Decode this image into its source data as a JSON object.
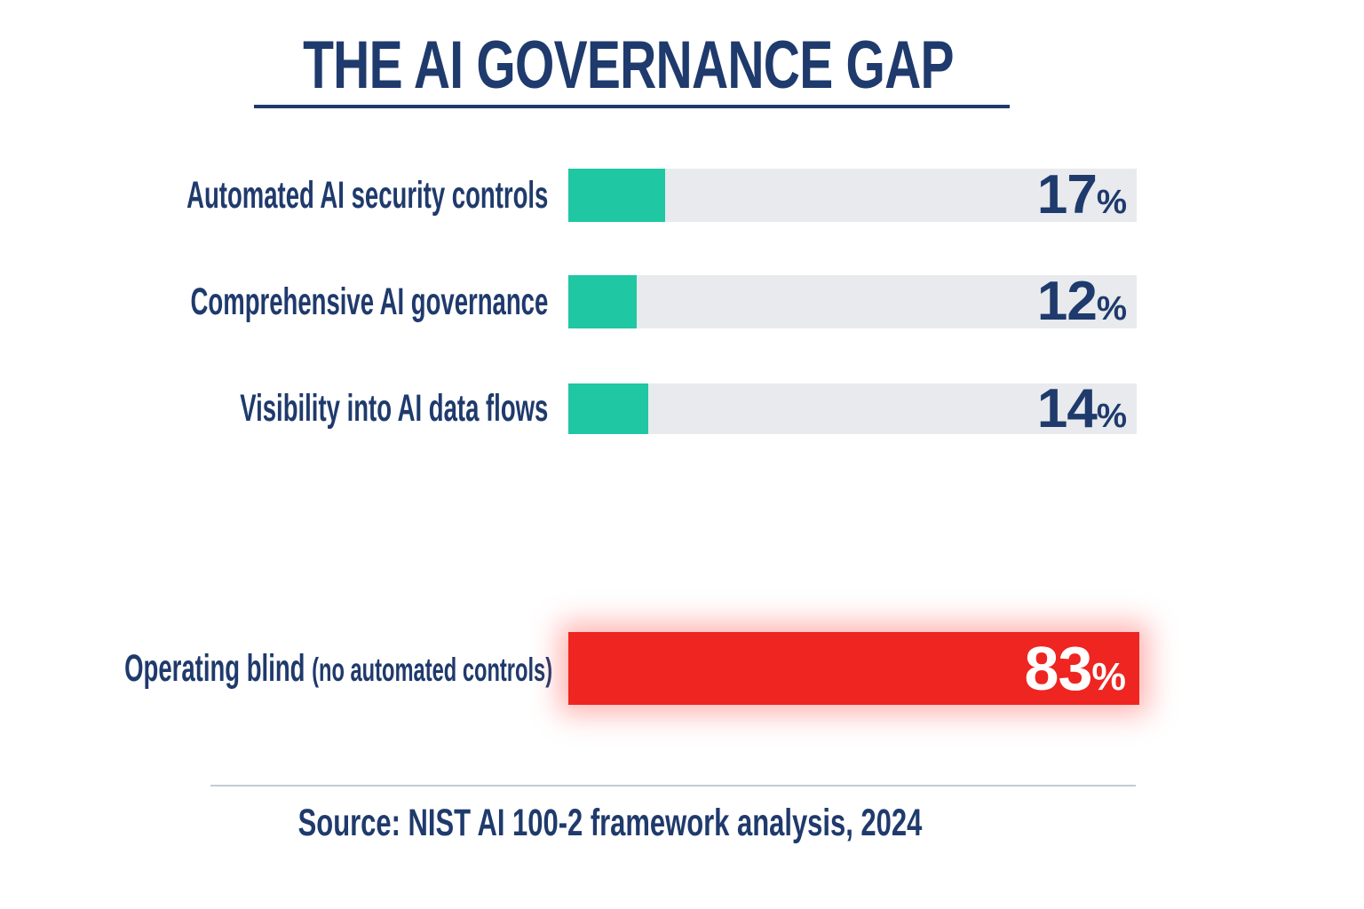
{
  "page": {
    "title": "THE AI GOVERNANCE GAP",
    "source_note": "Source: NIST AI 100-2 framework analysis, 2024"
  },
  "colors": {
    "navy_text": "#1f3a6c",
    "teal_bar": "#1fc7a3",
    "track_gray": "#e8eaed",
    "red_bar": "#ee2521",
    "red_glow": "rgba(255,64,58,0.40)",
    "white_value": "#ffffff",
    "divider": "#c3cad5",
    "background": "#ffffff"
  },
  "chart_data": {
    "type": "bar",
    "orientation": "horizontal",
    "title": "THE AI GOVERNANCE GAP",
    "xlabel": "",
    "ylabel": "",
    "xlim": [
      0,
      100
    ],
    "unit": "%",
    "grid": false,
    "legend": false,
    "categories": [
      "Automated AI security controls",
      "Comprehensive AI governance",
      "Visibility into AI data flows",
      "Operating blind (no automated controls)"
    ],
    "values": [
      17,
      12,
      14,
      83
    ],
    "value_labels": [
      "17%",
      "12%",
      "14%",
      "83%"
    ],
    "annotations": "Value labels rendered inside bars; 83% row drawn as a full-width red glowing bar for emphasis; top three rows teal fill on light gray track",
    "rows": [
      {
        "label": "Automated AI security controls",
        "label_suffix": "",
        "value": 17,
        "value_text": "17",
        "unit": "%",
        "bar_color": "#1fc7a3",
        "value_color": "#1f3a6c",
        "full_width": false
      },
      {
        "label": "Comprehensive AI governance",
        "label_suffix": "",
        "value": 12,
        "value_text": "12",
        "unit": "%",
        "bar_color": "#1fc7a3",
        "value_color": "#1f3a6c",
        "full_width": false
      },
      {
        "label": "Visibility into AI data flows",
        "label_suffix": "",
        "value": 14,
        "value_text": "14",
        "unit": "%",
        "bar_color": "#1fc7a3",
        "value_color": "#1f3a6c",
        "full_width": false
      },
      {
        "label": "Operating blind",
        "label_suffix": "(no automated controls)",
        "value": 83,
        "value_text": "83",
        "unit": "%",
        "bar_color": "#ee2521",
        "value_color": "#ffffff",
        "full_width": true
      }
    ],
    "source": "Source: NIST AI 100-2 framework analysis, 2024"
  }
}
